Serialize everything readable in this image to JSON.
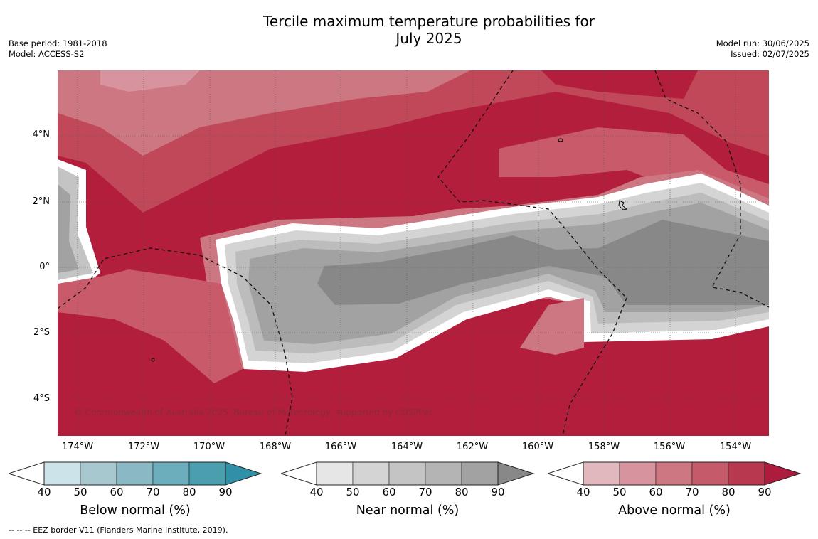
{
  "title_line1": "Tercile maximum temperature probabilities for",
  "title_line2": "July 2025",
  "meta_left": [
    "Base period: 1981-2018",
    "Model: ACCESS-S2"
  ],
  "meta_right": [
    "Model run: 30/06/2025",
    "Issued: 02/07/2025"
  ],
  "lat_ticks": [
    "4°N",
    "2°N",
    "0°",
    "2°S",
    "4°S"
  ],
  "lon_ticks": [
    "174°W",
    "172°W",
    "170°W",
    "168°W",
    "166°W",
    "164°W",
    "162°W",
    "160°W",
    "158°W",
    "156°W",
    "154°W"
  ],
  "copyright": "© Commonwealth of Australia 2025, Bureau of Meteorology, supported by COSPPac",
  "colorbars": [
    {
      "title": "Below normal (%)",
      "ticks": [
        "40",
        "50",
        "60",
        "70",
        "80",
        "90"
      ],
      "colors": [
        "#cce3ea",
        "#a8c8cf",
        "#8ab8c5",
        "#6daebd",
        "#4a9eae",
        "#2f90a8"
      ]
    },
    {
      "title": "Near normal (%)",
      "ticks": [
        "40",
        "50",
        "60",
        "70",
        "80",
        "90"
      ],
      "colors": [
        "#e6e6e6",
        "#d4d4d4",
        "#c4c4c4",
        "#b4b4b4",
        "#a2a2a2",
        "#888888"
      ]
    },
    {
      "title": "Above normal (%)",
      "ticks": [
        "40",
        "50",
        "60",
        "70",
        "80",
        "90"
      ],
      "colors": [
        "#e2b8bf",
        "#d7939e",
        "#cd7782",
        "#c45a6a",
        "#b83850",
        "#ad1c3c"
      ]
    }
  ],
  "footnote": "--  --  -- EEZ border V11 (Flanders Marine Institute, 2019).",
  "map_colors": {
    "above_max": "#b21e3b",
    "near_max": "#888888",
    "boundary": "#ffffff"
  }
}
